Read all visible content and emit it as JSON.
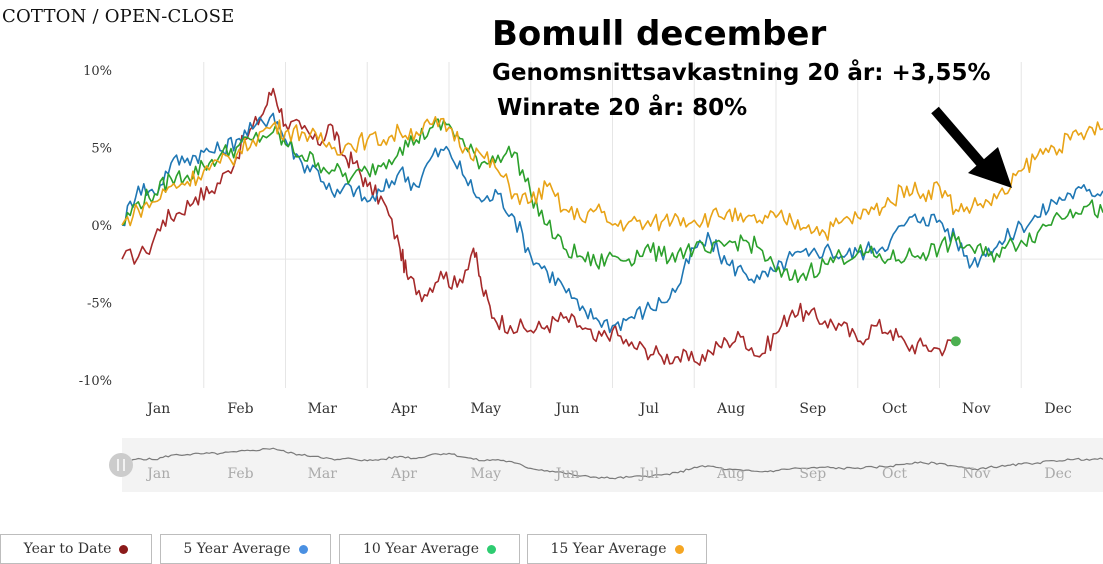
{
  "chart_data": {
    "type": "line",
    "title": "COTTON / OPEN-CLOSE",
    "annotation": {
      "title": "Bomull december",
      "line1": "Genomsnittsavkastning 20 år: +3,55%",
      "line2": "Winrate 20 år: 80%"
    },
    "months": [
      "Jan",
      "Feb",
      "Mar",
      "Apr",
      "May",
      "Jun",
      "Jul",
      "Aug",
      "Sep",
      "Oct",
      "Nov",
      "Dec"
    ],
    "ylim": [
      -10,
      10
    ],
    "y_ticks": [
      10,
      5,
      0,
      -5,
      -10
    ],
    "y_tick_labels": [
      "10%",
      "5%",
      "0%",
      "-5%",
      "-10%"
    ],
    "x_range": [
      0,
      12
    ],
    "grid": true,
    "legend_position": "bottom",
    "series": [
      {
        "name": "Year to Date",
        "color": "#a52a2a",
        "points": [
          [
            0,
            -2.2
          ],
          [
            0.3,
            -1.8
          ],
          [
            0.5,
            0.3
          ],
          [
            0.7,
            0.8
          ],
          [
            0.9,
            1.8
          ],
          [
            1.1,
            2.2
          ],
          [
            1.3,
            3.5
          ],
          [
            1.5,
            5.5
          ],
          [
            1.7,
            7.0
          ],
          [
            1.85,
            8.8
          ],
          [
            2.0,
            6.5
          ],
          [
            2.2,
            6.2
          ],
          [
            2.4,
            5.2
          ],
          [
            2.55,
            6.5
          ],
          [
            2.7,
            4.5
          ],
          [
            2.85,
            4.0
          ],
          [
            3.0,
            2.5
          ],
          [
            3.2,
            1.5
          ],
          [
            3.4,
            -1.5
          ],
          [
            3.5,
            -3.5
          ],
          [
            3.7,
            -4.5
          ],
          [
            3.9,
            -3.0
          ],
          [
            4.1,
            -4.0
          ],
          [
            4.3,
            -1.5
          ],
          [
            4.4,
            -4.0
          ],
          [
            4.55,
            -6.0
          ],
          [
            4.75,
            -6.5
          ],
          [
            5.0,
            -6.8
          ],
          [
            5.2,
            -6.5
          ],
          [
            5.4,
            -6.0
          ],
          [
            5.6,
            -6.5
          ],
          [
            5.8,
            -7.5
          ],
          [
            6.0,
            -6.8
          ],
          [
            6.2,
            -7.8
          ],
          [
            6.4,
            -8.0
          ],
          [
            6.6,
            -8.5
          ],
          [
            6.8,
            -8.5
          ],
          [
            7.0,
            -8.8
          ],
          [
            7.2,
            -8.2
          ],
          [
            7.4,
            -7.5
          ],
          [
            7.6,
            -7.2
          ],
          [
            7.8,
            -8.5
          ],
          [
            8.0,
            -7.0
          ],
          [
            8.2,
            -5.5
          ],
          [
            8.4,
            -5.8
          ],
          [
            8.6,
            -6.2
          ],
          [
            8.8,
            -6.5
          ],
          [
            9.0,
            -7.5
          ],
          [
            9.2,
            -6.5
          ],
          [
            9.4,
            -6.8
          ],
          [
            9.6,
            -7.8
          ],
          [
            9.8,
            -7.8
          ],
          [
            10.0,
            -8.0
          ],
          [
            10.2,
            -7.5
          ]
        ]
      },
      {
        "name": "5 Year Average",
        "color": "#1f77b4",
        "points": [
          [
            0,
            0
          ],
          [
            0.2,
            2.5
          ],
          [
            0.4,
            2.0
          ],
          [
            0.6,
            4.0
          ],
          [
            0.8,
            4.3
          ],
          [
            1.0,
            4.7
          ],
          [
            1.2,
            4.8
          ],
          [
            1.4,
            5.5
          ],
          [
            1.6,
            6.2
          ],
          [
            1.85,
            7.2
          ],
          [
            2.0,
            5.5
          ],
          [
            2.2,
            4.0
          ],
          [
            2.4,
            3.5
          ],
          [
            2.6,
            1.8
          ],
          [
            2.8,
            2.5
          ],
          [
            3.0,
            1.5
          ],
          [
            3.2,
            2.2
          ],
          [
            3.4,
            3.5
          ],
          [
            3.6,
            2.5
          ],
          [
            3.8,
            4.5
          ],
          [
            4.0,
            4.8
          ],
          [
            4.2,
            3.0
          ],
          [
            4.4,
            1.5
          ],
          [
            4.6,
            2.0
          ],
          [
            4.8,
            0.5
          ],
          [
            5.0,
            -2.0
          ],
          [
            5.2,
            -3.0
          ],
          [
            5.4,
            -4.0
          ],
          [
            5.6,
            -5.5
          ],
          [
            5.8,
            -6.0
          ],
          [
            6.0,
            -6.5
          ],
          [
            6.2,
            -6.0
          ],
          [
            6.4,
            -5.5
          ],
          [
            6.6,
            -5.0
          ],
          [
            6.8,
            -4.0
          ],
          [
            7.0,
            -1.5
          ],
          [
            7.2,
            -1.0
          ],
          [
            7.4,
            -2.5
          ],
          [
            7.6,
            -3.0
          ],
          [
            7.8,
            -3.5
          ],
          [
            8.0,
            -3.0
          ],
          [
            8.2,
            -2.0
          ],
          [
            8.4,
            -2.0
          ],
          [
            8.6,
            -1.5
          ],
          [
            8.8,
            -2.0
          ],
          [
            9.0,
            -1.8
          ],
          [
            9.2,
            -1.5
          ],
          [
            9.4,
            -1.0
          ],
          [
            9.6,
            0.2
          ],
          [
            9.8,
            0.5
          ],
          [
            10.0,
            0.3
          ],
          [
            10.2,
            -1.0
          ],
          [
            10.4,
            -2.5
          ],
          [
            10.6,
            -1.5
          ],
          [
            10.8,
            -1.0
          ],
          [
            11.0,
            0
          ],
          [
            11.2,
            0.5
          ],
          [
            11.4,
            1.5
          ],
          [
            11.6,
            2.0
          ],
          [
            11.8,
            2.2
          ],
          [
            12.0,
            2.2
          ]
        ]
      },
      {
        "name": "10 Year Average",
        "color": "#2ca02c",
        "points": [
          [
            0,
            0
          ],
          [
            0.2,
            1.5
          ],
          [
            0.4,
            2.0
          ],
          [
            0.6,
            3.0
          ],
          [
            0.8,
            3.2
          ],
          [
            1.0,
            3.8
          ],
          [
            1.2,
            4.5
          ],
          [
            1.4,
            5.0
          ],
          [
            1.6,
            5.5
          ],
          [
            1.85,
            6.0
          ],
          [
            2.0,
            5.2
          ],
          [
            2.2,
            4.5
          ],
          [
            2.4,
            4.0
          ],
          [
            2.6,
            3.5
          ],
          [
            2.8,
            3.0
          ],
          [
            3.0,
            3.5
          ],
          [
            3.2,
            4.0
          ],
          [
            3.4,
            5.0
          ],
          [
            3.6,
            5.5
          ],
          [
            3.8,
            6.3
          ],
          [
            4.0,
            6.5
          ],
          [
            4.2,
            5.0
          ],
          [
            4.4,
            4.0
          ],
          [
            4.6,
            4.5
          ],
          [
            4.8,
            4.7
          ],
          [
            5.0,
            2.0
          ],
          [
            5.2,
            0
          ],
          [
            5.4,
            -1.5
          ],
          [
            5.6,
            -2.0
          ],
          [
            5.8,
            -2.5
          ],
          [
            6.0,
            -2.0
          ],
          [
            6.2,
            -2.2
          ],
          [
            6.4,
            -1.5
          ],
          [
            6.6,
            -2.0
          ],
          [
            6.8,
            -1.8
          ],
          [
            7.0,
            -1.5
          ],
          [
            7.2,
            -1.8
          ],
          [
            7.4,
            -1.2
          ],
          [
            7.6,
            -1.0
          ],
          [
            7.8,
            -1.5
          ],
          [
            8.0,
            -3.0
          ],
          [
            8.2,
            -3.5
          ],
          [
            8.4,
            -3.0
          ],
          [
            8.6,
            -2.5
          ],
          [
            8.8,
            -2.0
          ],
          [
            9.0,
            -1.8
          ],
          [
            9.2,
            -2.0
          ],
          [
            9.4,
            -2.2
          ],
          [
            9.6,
            -2.0
          ],
          [
            9.8,
            -1.8
          ],
          [
            10.0,
            -1.5
          ],
          [
            10.2,
            -1.0
          ],
          [
            10.4,
            -1.5
          ],
          [
            10.6,
            -2.0
          ],
          [
            10.8,
            -1.5
          ],
          [
            11.0,
            -1.0
          ],
          [
            11.2,
            -0.5
          ],
          [
            11.4,
            0.5
          ],
          [
            11.6,
            1.0
          ],
          [
            11.8,
            1.2
          ],
          [
            12.0,
            0.8
          ]
        ]
      },
      {
        "name": "15 Year Average",
        "color": "#e8a317",
        "points": [
          [
            0,
            0
          ],
          [
            0.2,
            1.0
          ],
          [
            0.4,
            1.5
          ],
          [
            0.6,
            2.5
          ],
          [
            0.8,
            2.8
          ],
          [
            1.0,
            3.5
          ],
          [
            1.2,
            4.0
          ],
          [
            1.4,
            4.5
          ],
          [
            1.6,
            5.5
          ],
          [
            1.85,
            6.5
          ],
          [
            2.0,
            6.0
          ],
          [
            2.2,
            6.0
          ],
          [
            2.4,
            5.5
          ],
          [
            2.6,
            5.0
          ],
          [
            2.8,
            5.2
          ],
          [
            3.0,
            5.5
          ],
          [
            3.2,
            5.5
          ],
          [
            3.4,
            6.0
          ],
          [
            3.6,
            6.0
          ],
          [
            3.8,
            6.5
          ],
          [
            4.0,
            6.3
          ],
          [
            4.2,
            5.0
          ],
          [
            4.4,
            4.5
          ],
          [
            4.6,
            3.5
          ],
          [
            4.8,
            2.0
          ],
          [
            5.0,
            1.5
          ],
          [
            5.2,
            2.5
          ],
          [
            5.4,
            1.0
          ],
          [
            5.6,
            0.5
          ],
          [
            5.8,
            1.0
          ],
          [
            6.0,
            0
          ],
          [
            6.2,
            0.2
          ],
          [
            6.4,
            0
          ],
          [
            6.6,
            0.2
          ],
          [
            6.8,
            0.5
          ],
          [
            7.0,
            0.3
          ],
          [
            7.2,
            0.5
          ],
          [
            7.4,
            0.8
          ],
          [
            7.6,
            0.2
          ],
          [
            7.8,
            0.3
          ],
          [
            8.0,
            0.5
          ],
          [
            8.2,
            0.2
          ],
          [
            8.4,
            0
          ],
          [
            8.6,
            -0.5
          ],
          [
            8.8,
            0.2
          ],
          [
            9.0,
            0.5
          ],
          [
            9.2,
            1.0
          ],
          [
            9.4,
            1.5
          ],
          [
            9.6,
            2.5
          ],
          [
            9.8,
            2.0
          ],
          [
            10.0,
            2.5
          ],
          [
            10.2,
            1.0
          ],
          [
            10.4,
            1.2
          ],
          [
            10.6,
            1.5
          ],
          [
            10.8,
            2.0
          ],
          [
            11.0,
            3.5
          ],
          [
            11.2,
            4.5
          ],
          [
            11.4,
            5.0
          ],
          [
            11.6,
            5.5
          ],
          [
            11.8,
            6.0
          ],
          [
            12.0,
            6.2
          ]
        ]
      }
    ],
    "navigator": {
      "months": [
        "Jan",
        "Feb",
        "Mar",
        "Apr",
        "May",
        "Jun",
        "Jul",
        "Aug",
        "Sep",
        "Oct",
        "Nov",
        "Dec"
      ],
      "handle_color": "#cccccc"
    },
    "end_marker_color": "#4caf50"
  },
  "legend": [
    {
      "label": "Year to Date",
      "color": "#8b1a1a"
    },
    {
      "label": "5 Year Average",
      "color": "#4a90e2"
    },
    {
      "label": "10 Year Average",
      "color": "#2ecc71"
    },
    {
      "label": "15 Year Average",
      "color": "#f5a623"
    }
  ]
}
